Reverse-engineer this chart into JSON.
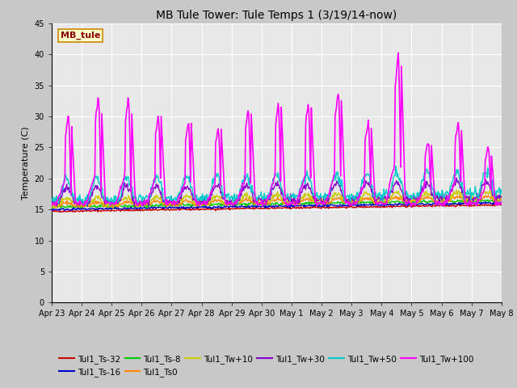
{
  "title": "MB Tule Tower: Tule Temps 1 (3/19/14-now)",
  "ylabel": "Temperature (C)",
  "ylim": [
    0,
    45
  ],
  "yticks": [
    0,
    5,
    10,
    15,
    20,
    25,
    30,
    35,
    40,
    45
  ],
  "xtick_labels": [
    "Apr 23",
    "Apr 24",
    "Apr 25",
    "Apr 26",
    "Apr 27",
    "Apr 28",
    "Apr 29",
    "Apr 30",
    "May 1",
    "May 2",
    "May 3",
    "May 4",
    "May 5",
    "May 6",
    "May 7",
    "May 8"
  ],
  "fig_bg": "#c8c8c8",
  "axes_bg": "#e8e8e8",
  "grid_color": "#ffffff",
  "series": [
    {
      "label": "Tul1_Ts-32",
      "color": "#cc0000",
      "lw": 1.0
    },
    {
      "label": "Tul1_Ts-16",
      "color": "#0000cc",
      "lw": 1.0
    },
    {
      "label": "Tul1_Ts-8",
      "color": "#00cc00",
      "lw": 1.0
    },
    {
      "label": "Tul1_Ts0",
      "color": "#ff8800",
      "lw": 1.0
    },
    {
      "label": "Tul1_Tw+10",
      "color": "#cccc00",
      "lw": 1.0
    },
    {
      "label": "Tul1_Tw+30",
      "color": "#8800cc",
      "lw": 1.0
    },
    {
      "label": "Tul1_Tw+50",
      "color": "#00cccc",
      "lw": 1.0
    },
    {
      "label": "Tul1_Tw+100",
      "color": "#ff00ff",
      "lw": 1.2
    }
  ],
  "annotation_box": {
    "text": "MB_tule",
    "facecolor": "#ffffcc",
    "edgecolor": "#cc8800",
    "textcolor": "#880000",
    "fontsize": 8,
    "fontweight": "bold"
  },
  "title_fontsize": 10,
  "ylabel_fontsize": 8,
  "tick_fontsize": 7,
  "legend_fontsize": 7.5
}
